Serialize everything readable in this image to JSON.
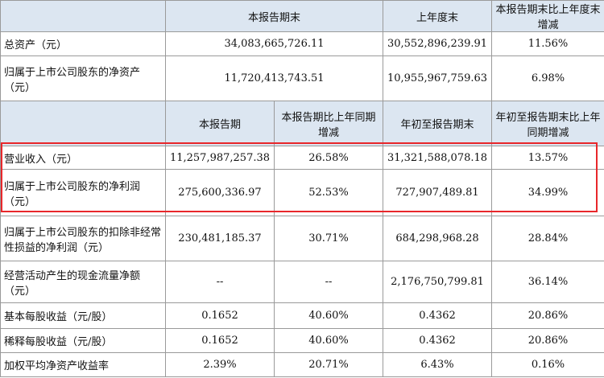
{
  "top_header": [
    "本报告期末",
    "上年度末",
    "本报告期末比上年度末增减"
  ],
  "top_rows": [
    {
      "label": "总资产（元）",
      "v1": "34,083,665,726.11",
      "v2": "30,552,896,239.91",
      "v3": "11.56%"
    },
    {
      "label": "归属于上市公司股东的净资产（元）",
      "v1": "11,720,413,743.51",
      "v2": "10,955,967,759.63",
      "v3": "6.98%"
    }
  ],
  "mid_header": [
    "本报告期",
    "本报告期比上年同期增减",
    "年初至报告期末",
    "年初至报告期末比上年同期增减"
  ],
  "rows": [
    {
      "label": "营业收入（元）",
      "v1": "11,257,987,257.38",
      "v2": "26.58%",
      "v3": "31,321,588,078.18",
      "v4": "13.57%"
    },
    {
      "label": "归属于上市公司股东的净利润（元）",
      "v1": "275,600,336.97",
      "v2": "52.53%",
      "v3": "727,907,489.81",
      "v4": "34.99%"
    },
    {
      "label": "归属于上市公司股东的扣除非经常性损益的净利润（元）",
      "v1": "230,481,185.37",
      "v2": "30.71%",
      "v3": "684,298,968.28",
      "v4": "28.84%"
    },
    {
      "label": "经营活动产生的现金流量净额（元）",
      "v1": "--",
      "v2": "--",
      "v3": "2,176,750,799.81",
      "v4": "36.14%"
    },
    {
      "label": "基本每股收益（元/股）",
      "v1": "0.1652",
      "v2": "40.60%",
      "v3": "0.4362",
      "v4": "20.86%"
    },
    {
      "label": "稀释每股收益（元/股）",
      "v1": "0.1652",
      "v2": "40.60%",
      "v3": "0.4362",
      "v4": "20.86%"
    },
    {
      "label": "加权平均净资产收益率",
      "v1": "2.39%",
      "v2": "20.71%",
      "v3": "6.43%",
      "v4": "0.16%"
    }
  ],
  "highlight_color": "#e8272b"
}
